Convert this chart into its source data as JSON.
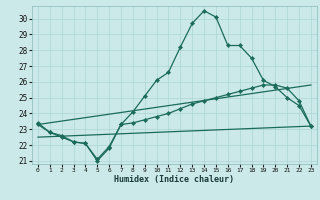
{
  "xlabel": "Humidex (Indice chaleur)",
  "bg_color": "#cce9e9",
  "line_color": "#1a6b5a",
  "grid_color": "#aad4d4",
  "xlim": [
    -0.5,
    23.5
  ],
  "ylim": [
    20.8,
    30.8
  ],
  "yticks": [
    21,
    22,
    23,
    24,
    25,
    26,
    27,
    28,
    29,
    30
  ],
  "xticks": [
    0,
    1,
    2,
    3,
    4,
    5,
    6,
    7,
    8,
    9,
    10,
    11,
    12,
    13,
    14,
    15,
    16,
    17,
    18,
    19,
    20,
    21,
    22,
    23
  ],
  "line1_x": [
    0,
    1,
    2,
    3,
    4,
    5,
    6,
    7,
    8,
    9,
    10,
    11,
    12,
    13,
    14,
    15,
    16,
    17,
    18,
    19,
    20,
    21,
    22,
    23
  ],
  "line1_y": [
    23.4,
    22.8,
    22.5,
    22.2,
    22.1,
    21.0,
    21.8,
    23.3,
    24.1,
    25.1,
    26.1,
    26.6,
    28.2,
    29.7,
    30.5,
    30.1,
    28.3,
    28.3,
    27.5,
    26.1,
    25.7,
    25.0,
    24.5,
    23.2
  ],
  "line2_x": [
    0,
    1,
    2,
    3,
    4,
    5,
    6,
    7,
    8,
    9,
    10,
    11,
    12,
    13,
    14,
    15,
    16,
    17,
    18,
    19,
    20,
    21,
    22,
    23
  ],
  "line2_y": [
    23.3,
    22.8,
    22.6,
    22.2,
    22.1,
    21.1,
    21.9,
    23.3,
    23.4,
    23.6,
    23.8,
    24.0,
    24.3,
    24.6,
    24.8,
    25.0,
    25.2,
    25.4,
    25.6,
    25.8,
    25.8,
    25.6,
    24.8,
    23.2
  ],
  "line3_x": [
    0,
    23
  ],
  "line3_y": [
    23.3,
    25.8
  ],
  "line4_x": [
    0,
    23
  ],
  "line4_y": [
    22.5,
    23.2
  ]
}
